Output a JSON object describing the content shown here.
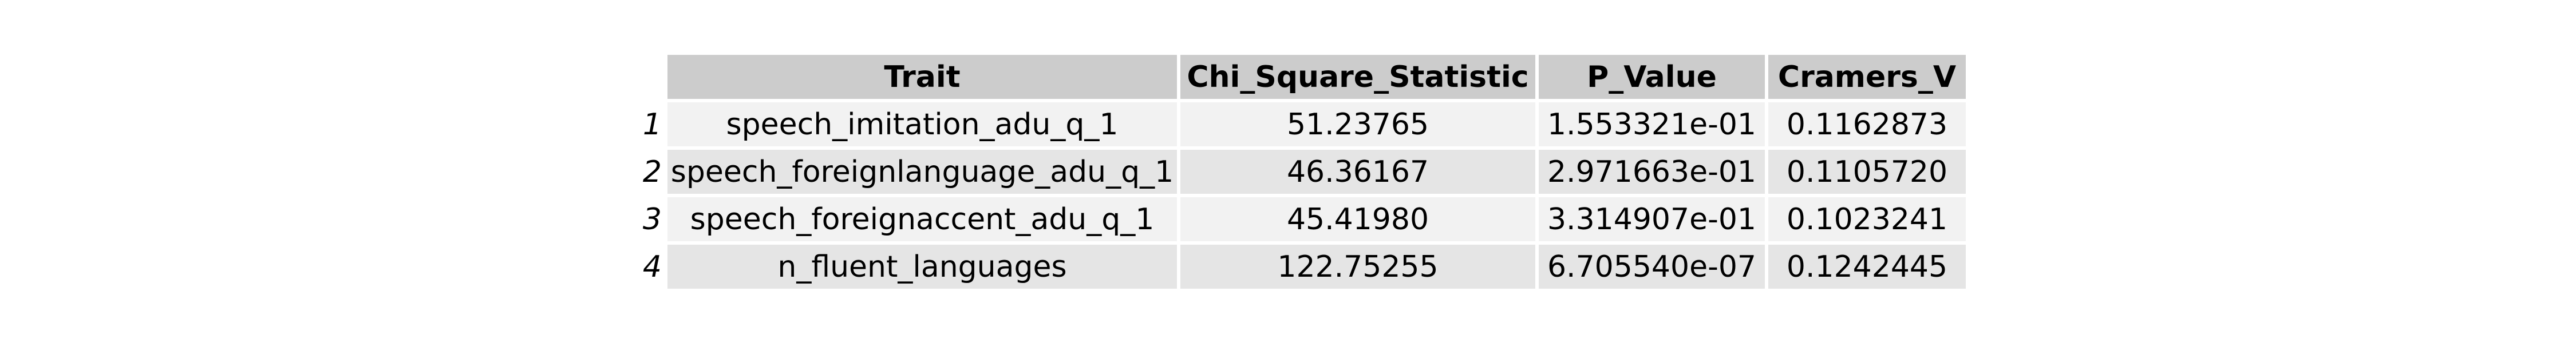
{
  "chart_data": {
    "type": "table",
    "columns": [
      "Trait",
      "Chi_Square_Statistic",
      "P_Value",
      "Cramers_V"
    ],
    "row_labels": [
      "1",
      "2",
      "3",
      "4"
    ],
    "rows": [
      [
        "speech_imitation_adu_q_1",
        "51.23765",
        "1.553321e-01",
        "0.1162873"
      ],
      [
        "speech_foreignlanguage_adu_q_1",
        "46.36167",
        "2.971663e-01",
        "0.1105720"
      ],
      [
        "speech_foreignaccent_adu_q_1",
        "45.41980",
        "3.314907e-01",
        "0.1023241"
      ],
      [
        "n_fluent_languages",
        "122.75255",
        "6.705540e-07",
        "0.1242445"
      ]
    ],
    "header_bg": "#cccccc",
    "row_bg_light": "#f2f2f2",
    "row_bg_dark": "#e5e5e5"
  }
}
